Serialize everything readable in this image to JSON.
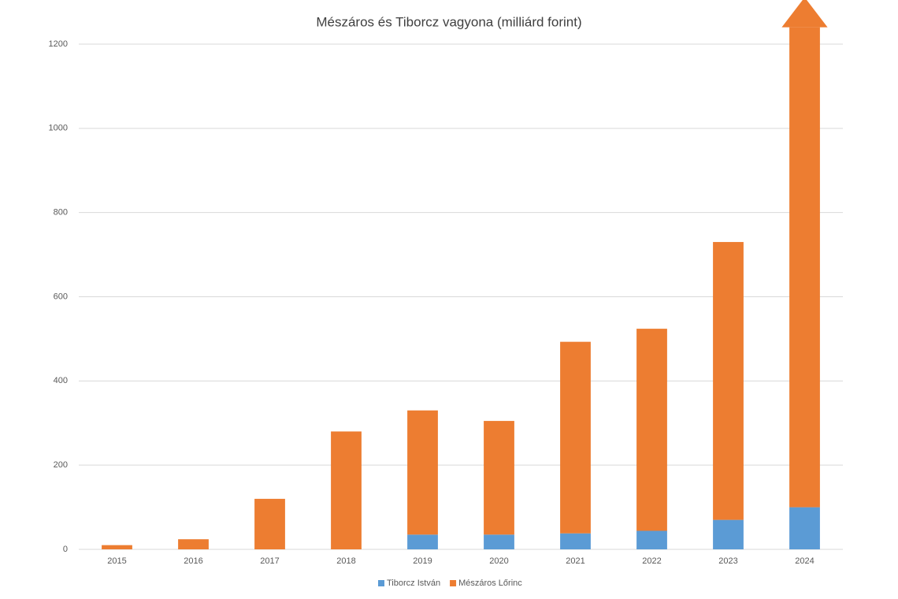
{
  "chart_data": {
    "type": "stacked-bar",
    "title": "Mészáros és Tiborcz vagyona (milliárd forint)",
    "categories": [
      "2015",
      "2016",
      "2017",
      "2018",
      "2019",
      "2020",
      "2021",
      "2022",
      "2023",
      "2024"
    ],
    "series": [
      {
        "name": "Tiborcz István",
        "color": "#5b9bd5",
        "values": [
          0,
          0,
          0,
          0,
          35,
          35,
          38,
          44,
          70,
          100
        ]
      },
      {
        "name": "Mészáros Lőrinc",
        "color": "#ed7d31",
        "values": [
          10,
          24,
          120,
          280,
          295,
          270,
          455,
          480,
          660,
          1140
        ]
      }
    ],
    "ylim": [
      0,
      1200
    ],
    "yticks": [
      0,
      200,
      400,
      600,
      800,
      1000,
      1200
    ],
    "grid": true,
    "legend": "bottom"
  }
}
